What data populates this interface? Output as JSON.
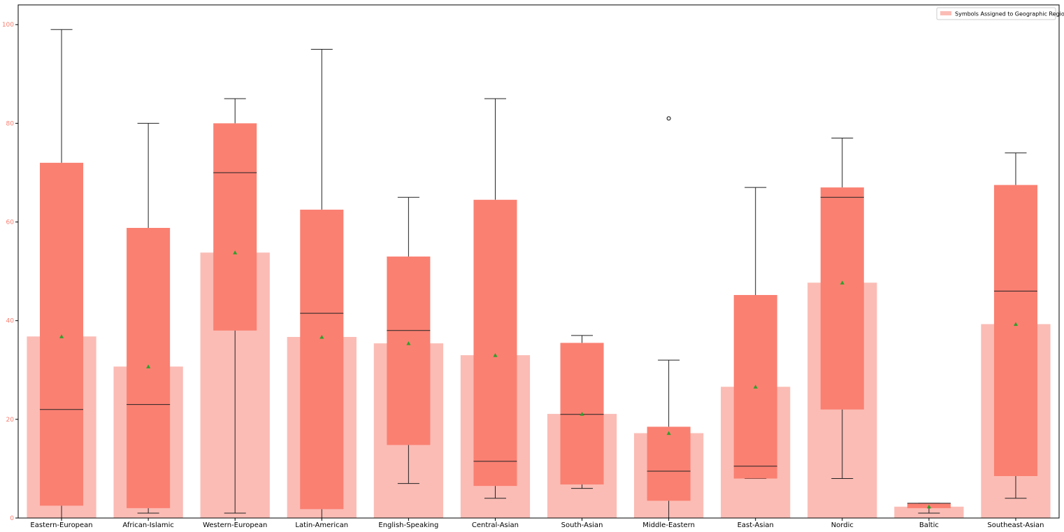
{
  "chart_data": {
    "type": "bar",
    "subtype": "bar_with_boxplot_overlay",
    "title": "",
    "xlabel": "",
    "ylabel": "",
    "ylim": [
      0,
      104
    ],
    "yticks": [
      "0",
      "20",
      "40",
      "60",
      "80",
      "100"
    ],
    "grid": false,
    "legend": {
      "placement": "top-right",
      "entries": [
        "Symbols Assigned to Geographic Region"
      ]
    },
    "colors": {
      "bar": "#fbbcb5",
      "box": "#fa8072",
      "whisker": "#222222",
      "mean_marker": "#2ca02c",
      "ytick": "#fa8072",
      "axis": "#000000"
    },
    "categories": [
      "Eastern-European",
      "African-Islamic",
      "Western-European",
      "Latin-American",
      "English-Speaking",
      "Central-Asian",
      "South-Asian",
      "Middle-Eastern",
      "East-Asian",
      "Nordic",
      "Baltic",
      "Southeast-Asian"
    ],
    "series": [
      {
        "name": "Symbols Assigned to Geographic Region",
        "values": [
          36.8,
          30.7,
          53.8,
          36.7,
          35.4,
          33.0,
          21.1,
          17.2,
          26.6,
          47.7,
          2.3,
          39.3
        ]
      }
    ],
    "boxplots": [
      {
        "category": "Eastern-European",
        "whisker_low": 0,
        "q1": 2.5,
        "median": 22,
        "q3": 72,
        "whisker_high": 99,
        "mean": 36.8,
        "outliers": []
      },
      {
        "category": "African-Islamic",
        "whisker_low": 1,
        "q1": 2,
        "median": 23,
        "q3": 58.8,
        "whisker_high": 80,
        "mean": 30.7,
        "outliers": []
      },
      {
        "category": "Western-European",
        "whisker_low": 1,
        "q1": 38,
        "median": 70,
        "q3": 80,
        "whisker_high": 85,
        "mean": 53.8,
        "outliers": []
      },
      {
        "category": "Latin-American",
        "whisker_low": 0,
        "q1": 1.8,
        "median": 41.5,
        "q3": 62.5,
        "whisker_high": 95,
        "mean": 36.7,
        "outliers": []
      },
      {
        "category": "English-Speaking",
        "whisker_low": 7,
        "q1": 14.8,
        "median": 38,
        "q3": 53,
        "whisker_high": 65,
        "mean": 35.4,
        "outliers": []
      },
      {
        "category": "Central-Asian",
        "whisker_low": 4,
        "q1": 6.5,
        "median": 11.5,
        "q3": 64.5,
        "whisker_high": 85,
        "mean": 33.0,
        "outliers": []
      },
      {
        "category": "South-Asian",
        "whisker_low": 6,
        "q1": 6.8,
        "median": 21,
        "q3": 35.5,
        "whisker_high": 37,
        "mean": 21.1,
        "outliers": []
      },
      {
        "category": "Middle-Eastern",
        "whisker_low": 0,
        "q1": 3.5,
        "median": 9.5,
        "q3": 18.5,
        "whisker_high": 32,
        "mean": 17.2,
        "outliers": [
          81
        ]
      },
      {
        "category": "East-Asian",
        "whisker_low": 8,
        "q1": 8,
        "median": 10.5,
        "q3": 45.2,
        "whisker_high": 67,
        "mean": 26.6,
        "outliers": []
      },
      {
        "category": "Nordic",
        "whisker_low": 8,
        "q1": 22,
        "median": 65,
        "q3": 67,
        "whisker_high": 77,
        "mean": 47.7,
        "outliers": []
      },
      {
        "category": "Baltic",
        "whisker_low": 1,
        "q1": 2,
        "median": 3,
        "q3": 3,
        "whisker_high": 3,
        "mean": 2.3,
        "outliers": []
      },
      {
        "category": "Southeast-Asian",
        "whisker_low": 4,
        "q1": 8.5,
        "median": 46,
        "q3": 67.5,
        "whisker_high": 74,
        "mean": 39.3,
        "outliers": []
      }
    ]
  }
}
